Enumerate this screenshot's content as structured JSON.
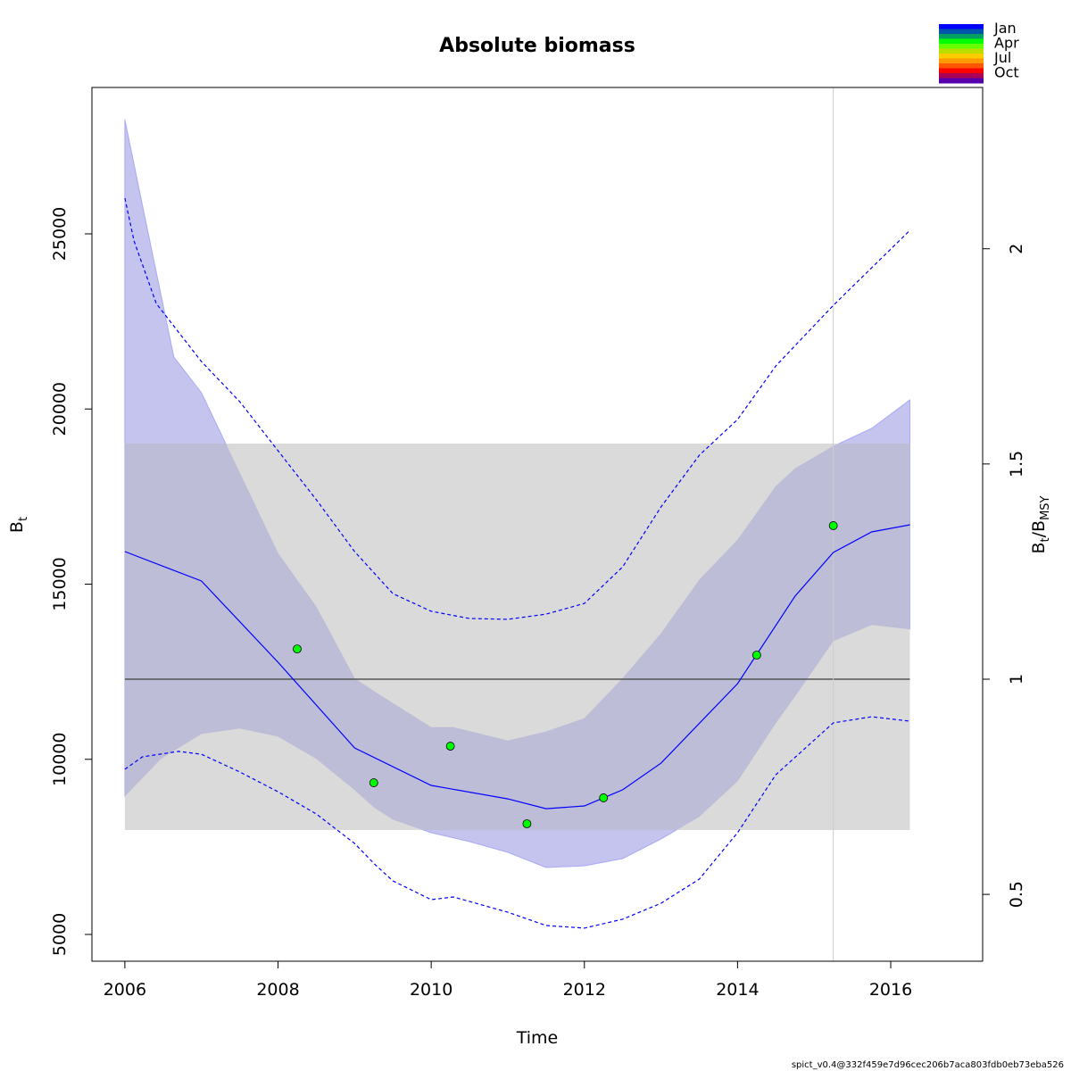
{
  "chart_data": {
    "type": "line",
    "title": "Absolute biomass",
    "xlabel": "Time",
    "ylabel": {
      "main": "B",
      "sub": "t"
    },
    "ylabel_right": {
      "main1": "B",
      "sub1": "t",
      "sep": "/",
      "main2": "B",
      "sub2": "MSY"
    },
    "xlim": [
      2005.57,
      2017.2
    ],
    "ylim": [
      4236,
      29178
    ],
    "x_ticks": [
      2006,
      2008,
      2010,
      2012,
      2014,
      2016
    ],
    "y_ticks": [
      5000,
      10000,
      15000,
      20000,
      25000
    ],
    "y_right_ticks": [
      0.5,
      1,
      1.5,
      2
    ],
    "bmsy": 12287,
    "bmsy_band": {
      "x": [
        2006,
        2016.25
      ],
      "y": [
        7981,
        19013
      ]
    },
    "vline_x": 2015.25,
    "series": [
      {
        "name": "estimate",
        "style": "solid",
        "x": [
          2006.0,
          2007.0,
          2008.0,
          2009.0,
          2010.0,
          2011.0,
          2011.5,
          2012.0,
          2012.5,
          2013.0,
          2014.0,
          2014.75,
          2015.25,
          2015.75,
          2016.25
        ],
        "y": [
          15930,
          15090,
          12770,
          10325,
          9255,
          8870,
          8590,
          8670,
          9130,
          9890,
          12160,
          14655,
          15905,
          16490,
          16695
        ]
      },
      {
        "name": "ci_upper",
        "style": "band",
        "x": [
          2006.0,
          2006.23,
          2006.64,
          2007.0,
          2008.0,
          2008.5,
          2009.0,
          2009.26,
          2010.0,
          2010.29,
          2011.0,
          2011.5,
          2012.0,
          2012.5,
          2013.0,
          2013.5,
          2014.0,
          2014.5,
          2014.75,
          2015.25,
          2015.75,
          2016.25
        ],
        "y": [
          28260,
          25815,
          21485,
          20465,
          15880,
          14350,
          12310,
          11930,
          10910,
          10910,
          10530,
          10785,
          11165,
          12310,
          13585,
          15115,
          16260,
          17790,
          18300,
          18935,
          19445,
          20260
        ]
      },
      {
        "name": "ci_lower",
        "style": "band",
        "x": [
          2006.0,
          2006.47,
          2007.0,
          2007.5,
          2008.0,
          2008.5,
          2009.0,
          2009.26,
          2009.5,
          2010.0,
          2010.5,
          2011.0,
          2011.5,
          2012.0,
          2012.5,
          2013.0,
          2013.5,
          2014.0,
          2014.5,
          2014.75,
          2015.25,
          2015.75,
          2016.25
        ],
        "y": [
          8950,
          10020,
          10730,
          10885,
          10655,
          10020,
          9130,
          8620,
          8285,
          7905,
          7650,
          7345,
          6910,
          6960,
          7165,
          7725,
          8365,
          9380,
          11040,
          11805,
          13380,
          13840,
          13715
        ]
      },
      {
        "name": "pred_upper",
        "style": "dashed",
        "x": [
          2006.0,
          2006.12,
          2006.41,
          2007.0,
          2007.5,
          2008.0,
          2008.5,
          2009.0,
          2009.5,
          2010.0,
          2010.5,
          2011.0,
          2011.5,
          2012.0,
          2012.5,
          2013.0,
          2013.5,
          2014.0,
          2014.5,
          2015.25,
          2015.75,
          2016.25
        ],
        "y": [
          26020,
          24795,
          23010,
          21355,
          20210,
          18810,
          17410,
          15930,
          14730,
          14225,
          14020,
          13995,
          14145,
          14450,
          15495,
          17205,
          18680,
          19700,
          21230,
          22960,
          24030,
          25100
        ]
      },
      {
        "name": "pred_lower",
        "style": "dashed",
        "x": [
          2006.0,
          2006.23,
          2006.7,
          2007.0,
          2007.5,
          2008.0,
          2008.5,
          2009.0,
          2009.26,
          2009.5,
          2010.0,
          2010.29,
          2011.0,
          2011.5,
          2012.0,
          2012.5,
          2013.0,
          2013.5,
          2014.0,
          2014.5,
          2015.25,
          2015.75,
          2016.25
        ],
        "y": [
          9715,
          10070,
          10225,
          10145,
          9640,
          9075,
          8440,
          7600,
          7010,
          6530,
          5995,
          6070,
          5635,
          5255,
          5180,
          5435,
          5890,
          6580,
          7905,
          9560,
          11040,
          11215,
          11090
        ]
      }
    ],
    "observations": {
      "x": [
        2008.25,
        2009.25,
        2010.25,
        2011.25,
        2012.25,
        2014.25,
        2015.25
      ],
      "y": [
        13150,
        9330,
        10375,
        8160,
        8900,
        12975,
        16670
      ]
    },
    "legend": {
      "placement": "top-right",
      "labels": [
        "Jan",
        "Apr",
        "Jul",
        "Oct"
      ],
      "colors": [
        "#0000ff",
        "#0055aa",
        "#00a060",
        "#00ff00",
        "#66ff00",
        "#bbdd00",
        "#ffcc00",
        "#ff9900",
        "#ff5500",
        "#ff0000",
        "#aa0055",
        "#5500aa"
      ]
    },
    "colors": {
      "line": "#0000ff",
      "band": "#e0e0ff",
      "band_stroke": "#b0b0ff",
      "bmsy_region": "#d3d3d3",
      "bmsy_line": "#555555",
      "point": "#00ff00",
      "vline": "#cccccc"
    }
  },
  "footer": "spict_v0.4@332f459e7d96cec206b7aca803fdb0eb73eba526"
}
